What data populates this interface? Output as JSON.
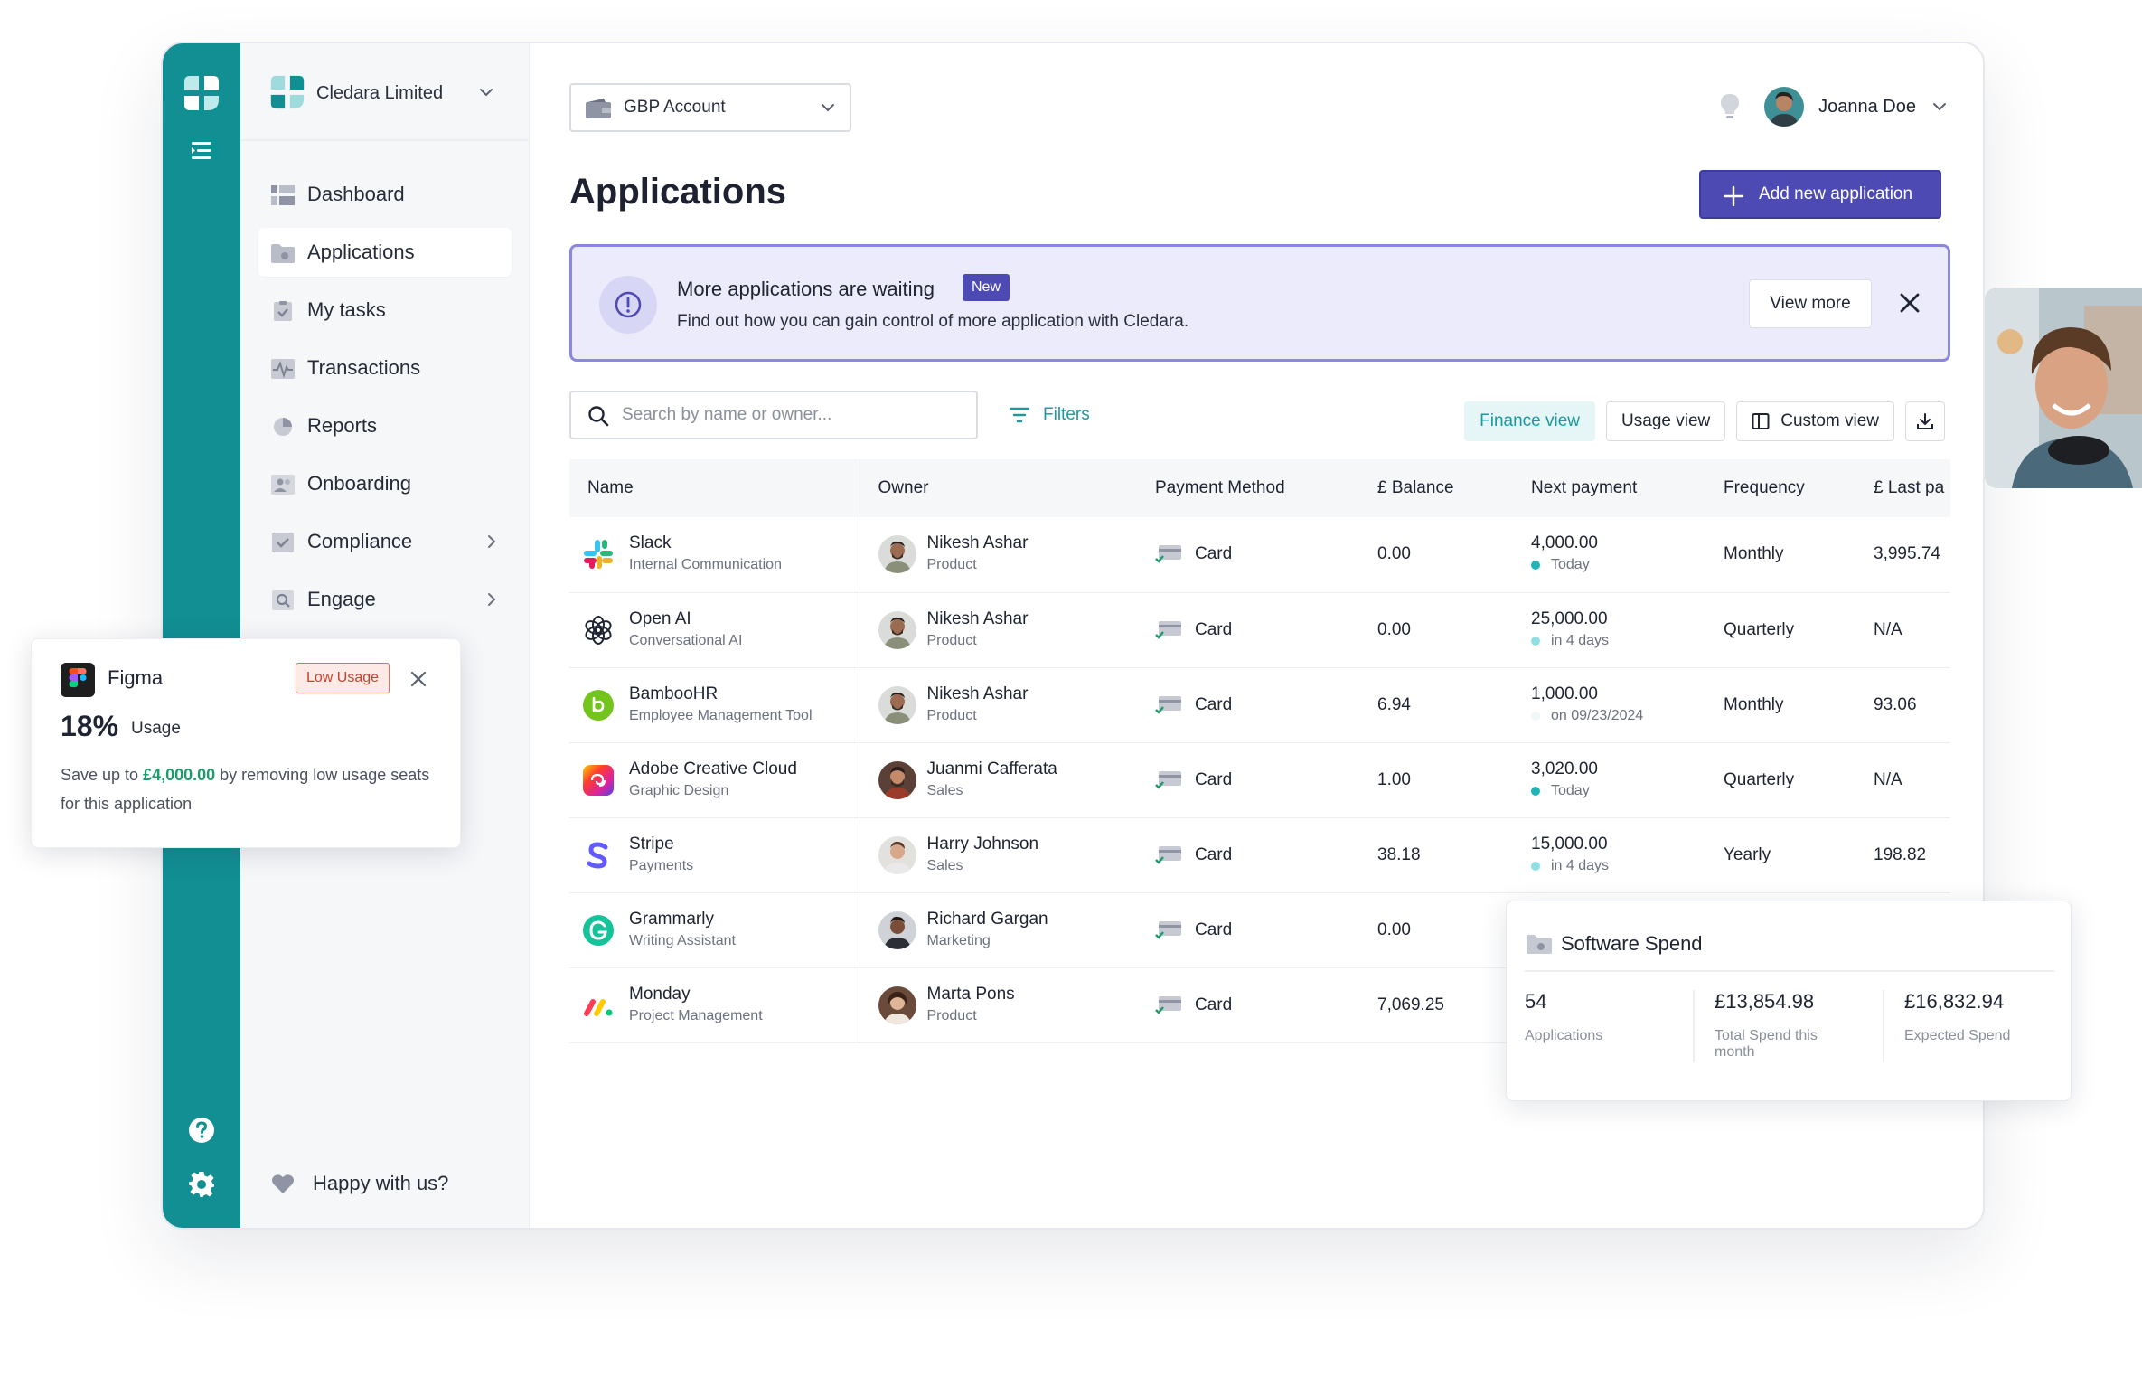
{
  "org": {
    "name": "Cledara Limited"
  },
  "nav": {
    "items": [
      {
        "label": "Dashboard"
      },
      {
        "label": "Applications"
      },
      {
        "label": "My tasks"
      },
      {
        "label": "Transactions"
      },
      {
        "label": "Reports"
      },
      {
        "label": "Onboarding"
      },
      {
        "label": "Compliance"
      },
      {
        "label": "Engage"
      }
    ],
    "footer": "Happy with us?"
  },
  "account": {
    "selected": "GBP Account"
  },
  "user": {
    "name": "Joanna Doe"
  },
  "page": {
    "title": "Applications",
    "add_button": "Add new application"
  },
  "banner": {
    "title": "More applications are waiting",
    "badge": "New",
    "text": "Find out how you can gain control of more application with Cledara.",
    "button": "View more"
  },
  "toolbar": {
    "search_placeholder": "Search by name or owner...",
    "filters": "Filters",
    "views": [
      "Finance view",
      "Usage view",
      "Custom view"
    ]
  },
  "table": {
    "columns": [
      "Name",
      "Owner",
      "Payment Method",
      "£ Balance",
      "Next payment",
      "Frequency",
      "£ Last pa"
    ],
    "rows": [
      {
        "name": "Slack",
        "category": "Internal Communication",
        "owner": "Nikesh Ashar",
        "dept": "Product",
        "payment": "Card",
        "balance": "0.00",
        "next": "4,000.00",
        "next_sub": "Today",
        "frequency": "Monthly",
        "last": "3,995.74"
      },
      {
        "name": "Open AI",
        "category": "Conversational AI",
        "owner": "Nikesh Ashar",
        "dept": "Product",
        "payment": "Card",
        "balance": "0.00",
        "next": "25,000.00",
        "next_sub": "in 4 days",
        "frequency": "Quarterly",
        "last": "N/A"
      },
      {
        "name": "BambooHR",
        "category": "Employee Management Tool",
        "owner": "Nikesh Ashar",
        "dept": "Product",
        "payment": "Card",
        "balance": "6.94",
        "next": "1,000.00",
        "next_sub": "on 09/23/2024",
        "frequency": "Monthly",
        "last": "93.06"
      },
      {
        "name": "Adobe Creative Cloud",
        "category": "Graphic Design",
        "owner": "Juanmi Cafferata",
        "dept": "Sales",
        "payment": "Card",
        "balance": "1.00",
        "next": "3,020.00",
        "next_sub": "Today",
        "frequency": "Quarterly",
        "last": "N/A"
      },
      {
        "name": "Stripe",
        "category": "Payments",
        "owner": "Harry Johnson",
        "dept": "Sales",
        "payment": "Card",
        "balance": "38.18",
        "next": "15,000.00",
        "next_sub": "in 4 days",
        "frequency": "Yearly",
        "last": "198.82"
      },
      {
        "name": "Grammarly",
        "category": "Writing Assistant",
        "owner": "Richard Gargan",
        "dept": "Marketing",
        "payment": "Card",
        "balance": "0.00",
        "next": "",
        "next_sub": "",
        "frequency": "",
        "last": ""
      },
      {
        "name": "Monday",
        "category": "Project Management",
        "owner": "Marta Pons",
        "dept": "Product",
        "payment": "Card",
        "balance": "7,069.25",
        "next": "",
        "next_sub": "",
        "frequency": "",
        "last": ""
      }
    ]
  },
  "figma_card": {
    "name": "Figma",
    "badge": "Low Usage",
    "percent": "18%",
    "usage_label": "Usage",
    "save_prefix": "Save up to ",
    "save_amount": "£4,000.00",
    "save_suffix": " by removing low usage seats for this application"
  },
  "spend_card": {
    "title": "Software Spend",
    "stats": [
      {
        "value": "54",
        "label": "Applications"
      },
      {
        "value": "£13,854.98",
        "label": "Total Spend this month"
      },
      {
        "value": "£16,832.94",
        "label": "Expected Spend"
      }
    ]
  },
  "colors": {
    "brand": "#128f93",
    "accent": "#4d4ab3",
    "today_dot": "#22b3b9",
    "upcoming_dot": "#8fe0e3"
  }
}
